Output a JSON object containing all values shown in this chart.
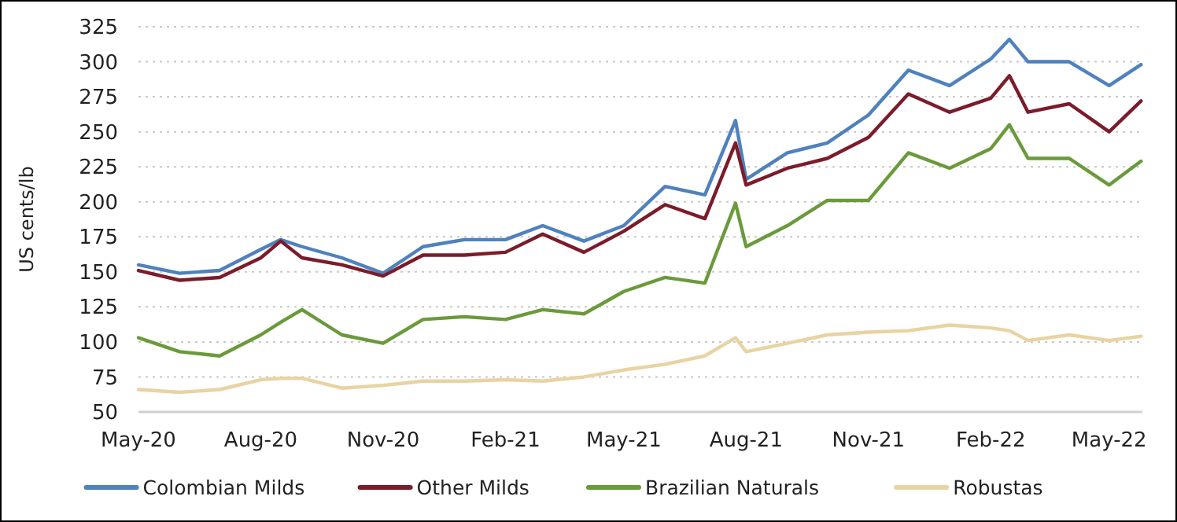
{
  "chart_data": {
    "type": "line",
    "ylabel": "US cents/lb",
    "x": [
      "2020-05-01",
      "2020-06-01",
      "2020-07-01",
      "2020-08-01",
      "2020-08-16",
      "2020-09-01",
      "2020-10-01",
      "2020-11-01",
      "2020-12-01",
      "2021-01-01",
      "2021-02-01",
      "2021-03-01",
      "2021-04-01",
      "2021-05-01",
      "2021-06-01",
      "2021-07-01",
      "2021-07-24",
      "2021-08-01",
      "2021-09-01",
      "2021-10-01",
      "2021-11-01",
      "2021-12-01",
      "2022-01-01",
      "2022-02-01",
      "2022-02-15",
      "2022-03-01",
      "2022-04-01",
      "2022-05-01",
      "2022-05-25"
    ],
    "series": [
      {
        "name": "Colombian Milds",
        "color": "#4f81bd",
        "values": [
          155,
          149,
          151,
          166,
          173,
          168,
          160,
          149,
          168,
          173,
          173,
          183,
          172,
          183,
          211,
          205,
          258,
          216,
          235,
          242,
          262,
          294,
          283,
          302,
          316,
          300,
          300,
          283,
          298
        ]
      },
      {
        "name": "Other Milds",
        "color": "#7b1c2b",
        "values": [
          151,
          144,
          146,
          160,
          172,
          160,
          155,
          147,
          162,
          162,
          164,
          177,
          164,
          179,
          198,
          188,
          242,
          212,
          224,
          231,
          246,
          277,
          264,
          274,
          290,
          264,
          270,
          250,
          272
        ]
      },
      {
        "name": "Brazilian Naturals",
        "color": "#6a9a3a",
        "values": [
          103,
          93,
          90,
          105,
          114,
          123,
          105,
          99,
          116,
          118,
          116,
          123,
          120,
          136,
          146,
          142,
          199,
          168,
          183,
          201,
          201,
          235,
          224,
          238,
          255,
          231,
          231,
          212,
          229
        ]
      },
      {
        "name": "Robustas",
        "color": "#e8d3a2",
        "values": [
          66,
          64,
          66,
          73,
          74,
          74,
          67,
          69,
          72,
          72,
          73,
          72,
          75,
          80,
          84,
          90,
          103,
          93,
          99,
          105,
          107,
          108,
          112,
          110,
          108,
          101,
          105,
          101,
          104
        ]
      }
    ],
    "xlim": [
      "2020-05-01",
      "2022-05-26"
    ],
    "xticks": [
      {
        "value": "2020-05-01",
        "label": "May-20"
      },
      {
        "value": "2020-08-01",
        "label": "Aug-20"
      },
      {
        "value": "2020-11-01",
        "label": "Nov-20"
      },
      {
        "value": "2021-02-01",
        "label": "Feb-21"
      },
      {
        "value": "2021-05-01",
        "label": "May-21"
      },
      {
        "value": "2021-08-01",
        "label": "Aug-21"
      },
      {
        "value": "2021-11-01",
        "label": "Nov-21"
      },
      {
        "value": "2022-02-01",
        "label": "Feb-22"
      },
      {
        "value": "2022-05-01",
        "label": "May-22"
      }
    ],
    "ylim": [
      50,
      325
    ],
    "yticks": [
      50,
      75,
      100,
      125,
      150,
      175,
      200,
      225,
      250,
      275,
      300,
      325
    ],
    "grid": "y",
    "legend": "bottom",
    "marker": "none",
    "line_style": "solid"
  }
}
